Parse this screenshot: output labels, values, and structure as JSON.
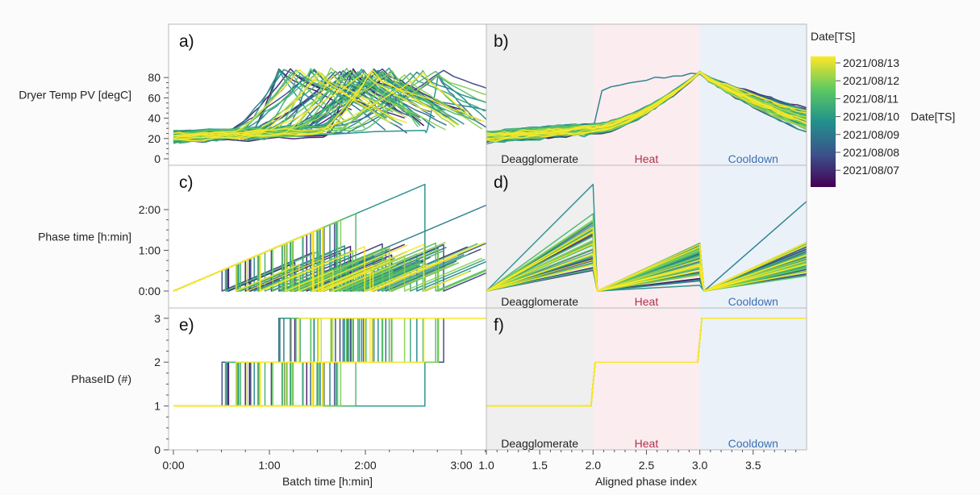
{
  "chart_data": {
    "type": "line",
    "colorbar": {
      "title": "Date[TS]",
      "ticks": [
        "2021/08/13",
        "2021/08/12",
        "2021/08/11",
        "2021/08/10",
        "2021/08/09",
        "2021/08/08",
        "2021/08/07"
      ],
      "mid_tick_suffix": "Date[TS]",
      "colormap": [
        "#440154",
        "#3b528b",
        "#21918c",
        "#5ec962",
        "#fde725"
      ]
    },
    "x_axes": {
      "left": {
        "label": "Batch time [h:min]",
        "ticks": [
          "0:00",
          "1:00",
          "2:00",
          "3:00"
        ],
        "range_hours": [
          0,
          3.4
        ]
      },
      "right": {
        "label": "Aligned phase index",
        "ticks": [
          "1.0",
          "1.5",
          "2.0",
          "2.5",
          "3.0",
          "3.5"
        ],
        "range": [
          1.0,
          4.0
        ]
      }
    },
    "rows": [
      {
        "id": "temp",
        "ylabel": "Dryer Temp PV [degC]",
        "yticks": [
          "80",
          "60",
          "40",
          "20",
          "0"
        ],
        "ylim": [
          -3,
          93
        ],
        "panel_labels": [
          "a)",
          "b)"
        ]
      },
      {
        "id": "phase_time",
        "ylabel": "Phase time [h:min]",
        "yticks": [
          "2:00",
          "1:00",
          "0:00"
        ],
        "ylim": [
          -0.1,
          2.9
        ],
        "panel_labels": [
          "c)",
          "d)"
        ]
      },
      {
        "id": "phase_id",
        "ylabel": "PhaseID (#)",
        "yticks": [
          "3",
          "2",
          "1",
          "0"
        ],
        "ylim": [
          0,
          3.15
        ],
        "panel_labels": [
          "e)",
          "f)"
        ]
      }
    ],
    "phases": [
      {
        "name": "Deagglomerate",
        "range": [
          1.0,
          2.0
        ],
        "bg": "#efefef",
        "text_color": "#222222"
      },
      {
        "name": "Heat",
        "range": [
          2.0,
          3.0
        ],
        "bg": "#fbecef",
        "text_color": "#b03048"
      },
      {
        "name": "Cooldown",
        "range": [
          3.0,
          4.0
        ],
        "bg": "#ebf1f8",
        "text_color": "#3a6fb6"
      }
    ],
    "series_count": 60
  }
}
